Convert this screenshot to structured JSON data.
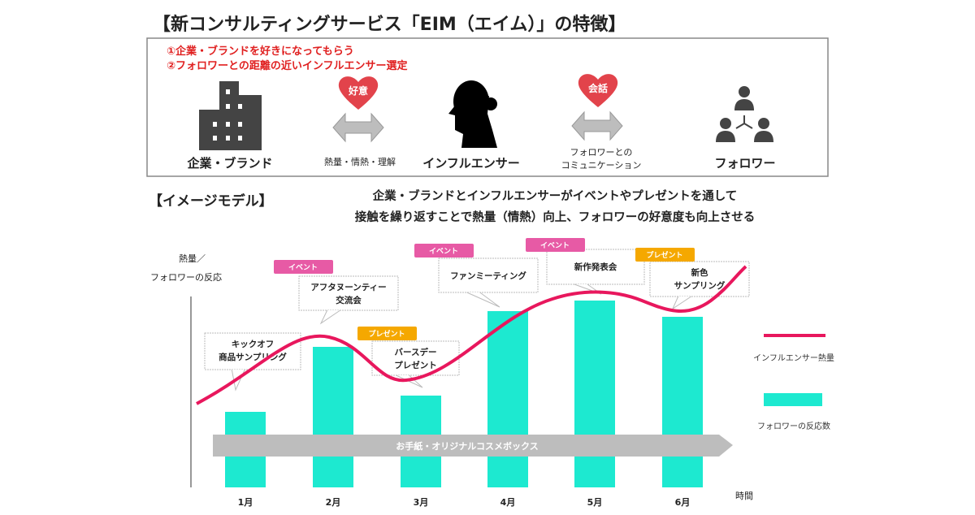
{
  "title": "【新コンサルティングサービス「EIM（エイム）」の特徴】",
  "features": {
    "points": [
      "①企業・ブランドを好きになってもらう",
      "②フォロワーとの距離の近いインフルエンサー選定"
    ],
    "nodes": {
      "brand": "企業・ブランド",
      "influencer": "インフルエンサー",
      "follower": "フォロワー"
    },
    "links": {
      "left_heart": "好意",
      "left_label": "熱量・情熱・理解",
      "right_heart": "会話",
      "right_label_1": "フォロワーとの",
      "right_label_2": "コミュニケーション"
    }
  },
  "model": {
    "heading": "【イメージモデル】",
    "subtitle_1": "企業・ブランドとインフルエンサーがイベントやプレゼントを通して",
    "subtitle_2": "接触を繰り返すことで熱量（情熱）向上、フォロワーの好意度も向上させる",
    "band": "お手紙・オリジナルコスメボックス"
  },
  "colors": {
    "line": "#e8175d",
    "bar": "#1de9d0",
    "event": "#e75aa5",
    "present": "#f5a800",
    "band": "#bdbdbd",
    "heart": "#e2434b"
  },
  "chart_data": {
    "type": "bar+line",
    "ylabel_1": "熱量／",
    "ylabel_2": "フォロワーの反応",
    "xlabel": "時間",
    "categories": [
      "1月",
      "2月",
      "3月",
      "4月",
      "5月",
      "6月"
    ],
    "series": [
      {
        "name": "フォロワーの反応数",
        "type": "bar",
        "values": [
          93,
          173,
          113,
          217,
          230,
          210
        ]
      },
      {
        "name": "インフルエンサー熱量",
        "type": "line",
        "values": [
          130,
          185,
          140,
          195,
          240,
          220
        ]
      }
    ],
    "annotations": [
      {
        "tag": "",
        "text_1": "キックオフ",
        "text_2": "商品サンプリング"
      },
      {
        "tag": "イベント",
        "text_1": "アフタヌーンティー",
        "text_2": "交流会"
      },
      {
        "tag": "プレゼント",
        "text_1": "バースデー",
        "text_2": "プレゼント"
      },
      {
        "tag": "イベント",
        "text_1": "ファンミーティング",
        "text_2": ""
      },
      {
        "tag": "イベント",
        "text_1": "新作発表会",
        "text_2": ""
      },
      {
        "tag": "プレゼント",
        "text_1": "新色",
        "text_2": "サンプリング"
      }
    ],
    "legend": [
      "インフルエンサー熱量",
      "フォロワーの反応数"
    ],
    "legend_position": "right"
  }
}
